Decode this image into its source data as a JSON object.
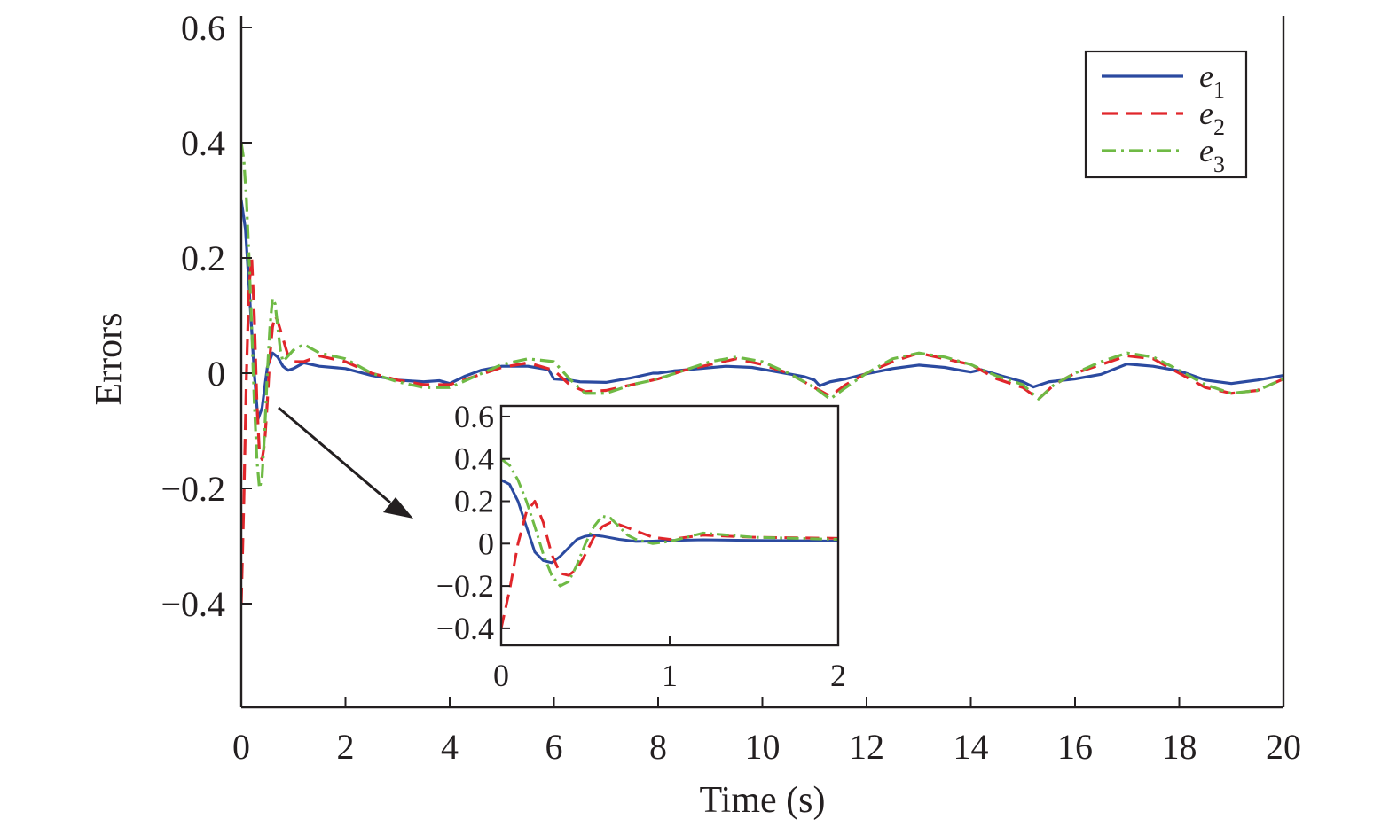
{
  "chart_data": [
    {
      "type": "line",
      "xlabel": "Time (s)",
      "ylabel": "Errors",
      "xlim": [
        0,
        20
      ],
      "ylim": [
        -0.58,
        0.62
      ],
      "xticks": [
        0,
        2,
        4,
        6,
        8,
        10,
        12,
        14,
        16,
        18,
        20
      ],
      "xtick_labels": [
        "0",
        "2",
        "4",
        "6",
        "8",
        "10",
        "12",
        "14",
        "16",
        "18",
        "20"
      ],
      "yticks": [
        0.6,
        0.4,
        0.2,
        0,
        -0.2,
        -0.4
      ],
      "ytick_labels": [
        "0.6",
        "0.4",
        "0.2",
        "0",
        "−0.2",
        "−0.4"
      ],
      "grid": false,
      "legend_position": "top-right",
      "series": [
        {
          "name": "e1",
          "legend_base": "e",
          "legend_sub": "1",
          "color": "#2b4aa0",
          "dash": "solid",
          "x": [
            0,
            0.08,
            0.15,
            0.25,
            0.32,
            0.4,
            0.5,
            0.6,
            0.7,
            0.8,
            0.9,
            1.0,
            1.2,
            1.5,
            2.0,
            2.5,
            3.0,
            3.5,
            3.8,
            4.0,
            4.3,
            4.6,
            5.0,
            5.5,
            5.9,
            6.0,
            6.3,
            6.5,
            7.0,
            7.5,
            7.9,
            8.0,
            8.3,
            8.8,
            9.3,
            9.8,
            10.3,
            10.8,
            11.0,
            11.1,
            11.3,
            11.6,
            12.0,
            12.5,
            13.0,
            13.5,
            13.8,
            14.0,
            14.2,
            14.6,
            15.0,
            15.2,
            15.5,
            16.0,
            16.5,
            17.0,
            17.5,
            18.0,
            18.5,
            19.0,
            19.5,
            20.0
          ],
          "y": [
            0.3,
            0.25,
            0.15,
            0.0,
            -0.08,
            -0.06,
            0.01,
            0.035,
            0.028,
            0.012,
            0.005,
            0.008,
            0.018,
            0.012,
            0.008,
            -0.004,
            -0.012,
            -0.015,
            -0.013,
            -0.018,
            -0.005,
            0.005,
            0.012,
            0.012,
            0.006,
            -0.01,
            -0.012,
            -0.015,
            -0.016,
            -0.008,
            0.0,
            0.0,
            0.004,
            0.008,
            0.012,
            0.01,
            0.002,
            -0.006,
            -0.012,
            -0.022,
            -0.015,
            -0.01,
            -0.001,
            0.008,
            0.014,
            0.01,
            0.005,
            0.002,
            0.006,
            -0.005,
            -0.015,
            -0.024,
            -0.015,
            -0.01,
            -0.002,
            0.016,
            0.012,
            0.004,
            -0.012,
            -0.018,
            -0.012,
            -0.004
          ]
        },
        {
          "name": "e2",
          "legend_base": "e",
          "legend_sub": "2",
          "color": "#e0262b",
          "dash": "longdash",
          "x": [
            0,
            0.05,
            0.1,
            0.15,
            0.2,
            0.25,
            0.3,
            0.35,
            0.4,
            0.45,
            0.5,
            0.55,
            0.6,
            0.65,
            0.7,
            0.8,
            0.9,
            1.0,
            1.2,
            1.5,
            2.0,
            2.5,
            3.0,
            3.5,
            4.0,
            4.5,
            5.0,
            5.5,
            6.0,
            6.3,
            6.6,
            7.0,
            7.5,
            8.0,
            8.5,
            9.0,
            9.5,
            10.0,
            10.5,
            11.0,
            11.3,
            11.6,
            12.0,
            12.5,
            13.0,
            13.5,
            14.0,
            14.5,
            15.0,
            15.3,
            15.6,
            16.0,
            16.5,
            17.0,
            17.5,
            18.0,
            18.5,
            19.0,
            19.5,
            20.0
          ],
          "y": [
            -0.4,
            -0.22,
            0.0,
            0.15,
            0.2,
            0.1,
            -0.05,
            -0.14,
            -0.15,
            -0.12,
            -0.05,
            0.03,
            0.08,
            0.1,
            0.09,
            0.06,
            0.03,
            0.02,
            0.02,
            0.03,
            0.02,
            0.0,
            -0.012,
            -0.02,
            -0.02,
            -0.005,
            0.01,
            0.018,
            0.005,
            -0.02,
            -0.032,
            -0.03,
            -0.02,
            -0.01,
            0.005,
            0.015,
            0.025,
            0.015,
            0.0,
            -0.025,
            -0.04,
            -0.02,
            0.0,
            0.02,
            0.035,
            0.025,
            0.015,
            -0.01,
            -0.025,
            -0.045,
            -0.02,
            0.0,
            0.015,
            0.03,
            0.025,
            0.0,
            -0.025,
            -0.035,
            -0.03,
            -0.01
          ]
        },
        {
          "name": "e3",
          "legend_base": "e",
          "legend_sub": "3",
          "color": "#6fba45",
          "dash": "dashdot",
          "x": [
            0,
            0.05,
            0.1,
            0.15,
            0.2,
            0.25,
            0.3,
            0.35,
            0.4,
            0.45,
            0.5,
            0.55,
            0.6,
            0.65,
            0.7,
            0.75,
            0.8,
            0.9,
            1.0,
            1.2,
            1.5,
            2.0,
            2.5,
            3.0,
            3.5,
            4.0,
            4.5,
            5.0,
            5.5,
            6.0,
            6.3,
            6.6,
            7.0,
            7.5,
            8.0,
            8.5,
            9.0,
            9.5,
            10.0,
            10.5,
            11.0,
            11.3,
            11.6,
            12.0,
            12.5,
            13.0,
            13.5,
            14.0,
            14.5,
            15.0,
            15.3,
            15.6,
            16.0,
            16.5,
            17.0,
            17.5,
            18.0,
            18.5,
            19.0,
            19.5,
            20.0
          ],
          "y": [
            0.4,
            0.37,
            0.3,
            0.2,
            0.08,
            -0.05,
            -0.15,
            -0.2,
            -0.18,
            -0.1,
            0.0,
            0.08,
            0.13,
            0.12,
            0.08,
            0.04,
            0.02,
            0.03,
            0.04,
            0.05,
            0.035,
            0.025,
            0.0,
            -0.015,
            -0.025,
            -0.025,
            -0.005,
            0.015,
            0.025,
            0.02,
            -0.01,
            -0.035,
            -0.035,
            -0.02,
            -0.01,
            0.005,
            0.02,
            0.028,
            0.02,
            0.0,
            -0.025,
            -0.045,
            -0.025,
            0.0,
            0.025,
            0.035,
            0.028,
            0.015,
            -0.005,
            -0.02,
            -0.045,
            -0.02,
            0.0,
            0.02,
            0.035,
            0.028,
            0.005,
            -0.02,
            -0.035,
            -0.03,
            -0.01
          ]
        }
      ]
    },
    {
      "type": "line",
      "role": "inset",
      "xlim": [
        0,
        2
      ],
      "ylim": [
        -0.48,
        0.65
      ],
      "xticks": [
        0,
        1,
        2
      ],
      "xtick_labels": [
        "0",
        "1",
        "2"
      ],
      "yticks": [
        0.6,
        0.4,
        0.2,
        0,
        -0.2,
        -0.4
      ],
      "ytick_labels": [
        "0.6",
        "0.4",
        "0.2",
        "0",
        "−0.2",
        "−0.4"
      ],
      "series": [
        {
          "legend_base": "e",
          "legend_sub": "1",
          "color": "#2b4aa0",
          "dash": "solid",
          "x": [
            0,
            0.05,
            0.1,
            0.15,
            0.2,
            0.25,
            0.3,
            0.35,
            0.4,
            0.45,
            0.5,
            0.55,
            0.6,
            0.7,
            0.8,
            0.9,
            1.0,
            1.2,
            1.5,
            2.0
          ],
          "y": [
            0.3,
            0.28,
            0.2,
            0.08,
            -0.04,
            -0.08,
            -0.09,
            -0.06,
            -0.02,
            0.02,
            0.035,
            0.04,
            0.035,
            0.02,
            0.01,
            0.012,
            0.015,
            0.018,
            0.015,
            0.012
          ]
        },
        {
          "legend_base": "e",
          "legend_sub": "2",
          "color": "#e0262b",
          "dash": "longdash",
          "x": [
            0,
            0.05,
            0.1,
            0.15,
            0.2,
            0.25,
            0.3,
            0.35,
            0.4,
            0.45,
            0.5,
            0.55,
            0.6,
            0.65,
            0.7,
            0.8,
            0.9,
            1.0,
            1.2,
            1.5,
            2.0
          ],
          "y": [
            -0.4,
            -0.22,
            0.0,
            0.15,
            0.2,
            0.1,
            -0.05,
            -0.14,
            -0.15,
            -0.12,
            -0.05,
            0.03,
            0.08,
            0.1,
            0.09,
            0.06,
            0.03,
            0.02,
            0.04,
            0.03,
            0.025
          ]
        },
        {
          "legend_base": "e",
          "legend_sub": "3",
          "color": "#6fba45",
          "dash": "dashdot",
          "x": [
            0,
            0.05,
            0.1,
            0.15,
            0.2,
            0.25,
            0.3,
            0.35,
            0.4,
            0.45,
            0.5,
            0.55,
            0.6,
            0.65,
            0.7,
            0.75,
            0.8,
            0.9,
            1.0,
            1.2,
            1.5,
            2.0
          ],
          "y": [
            0.4,
            0.37,
            0.3,
            0.2,
            0.08,
            -0.05,
            -0.15,
            -0.2,
            -0.18,
            -0.1,
            0.0,
            0.08,
            0.13,
            0.12,
            0.08,
            0.04,
            0.02,
            0.0,
            0.01,
            0.05,
            0.03,
            0.02
          ]
        }
      ]
    }
  ]
}
